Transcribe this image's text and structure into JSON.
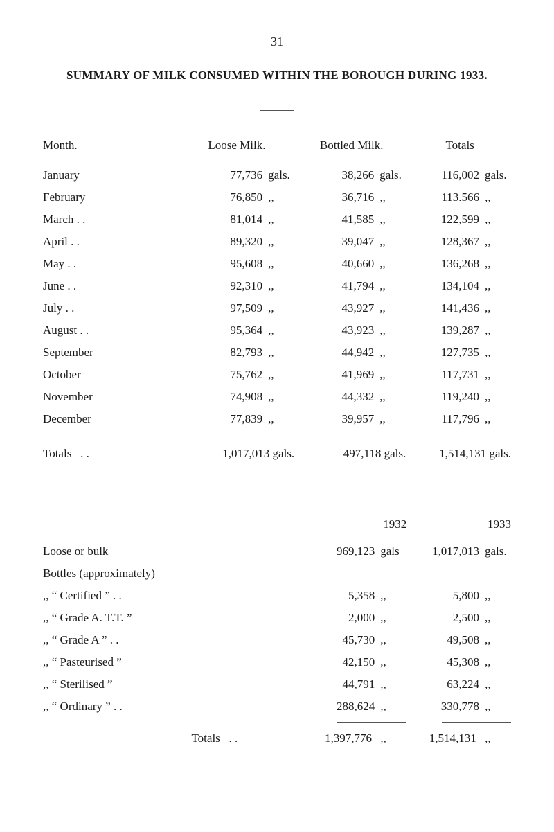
{
  "page_number": "31",
  "title": "SUMMARY OF MILK CONSUMED WITHIN THE BOROUGH DURING 1933.",
  "table1": {
    "headers": {
      "month": "Month.",
      "loose": "Loose Milk.",
      "bottled": "Bottled Milk.",
      "totals": "Totals"
    },
    "unit_gals": "gals.",
    "unit_ditto": ",,",
    "rows": [
      {
        "month": "January",
        "loose": "77,736",
        "bottled": "38,266",
        "total": "116,002"
      },
      {
        "month": "February",
        "loose": "76,850",
        "bottled": "36,716",
        "total": "113.566"
      },
      {
        "month": "March . .",
        "loose": "81,014",
        "bottled": "41,585",
        "total": "122,599"
      },
      {
        "month": "April   . .",
        "loose": "89,320",
        "bottled": "39,047",
        "total": "128,367"
      },
      {
        "month": "May    . .",
        "loose": "95,608",
        "bottled": "40,660",
        "total": "136,268"
      },
      {
        "month": "June   . .",
        "loose": "92,310",
        "bottled": "41,794",
        "total": "134,104"
      },
      {
        "month": "July   . .",
        "loose": "97,509",
        "bottled": "43,927",
        "total": "141,436"
      },
      {
        "month": "August . .",
        "loose": "95,364",
        "bottled": "43,923",
        "total": "139,287"
      },
      {
        "month": "September",
        "loose": "82,793",
        "bottled": "44,942",
        "total": "127,735"
      },
      {
        "month": "October",
        "loose": "75,762",
        "bottled": "41,969",
        "total": "117,731"
      },
      {
        "month": "November",
        "loose": "74,908",
        "bottled": "44,332",
        "total": "119,240"
      },
      {
        "month": "December",
        "loose": "77,839",
        "bottled": "39,957",
        "total": "117,796"
      }
    ],
    "totals_label": "Totals",
    "totals": {
      "loose": "1,017,013 gals.",
      "bottled": "497,118 gals.",
      "total": "1,514,131 gals."
    }
  },
  "table2": {
    "year1": "1932",
    "year2": "1933",
    "unit_gals": "gals",
    "unit_gals_dot": "gals.",
    "unit_ditto": ",,",
    "rows": [
      {
        "label": "Loose or bulk",
        "y1": "969,123",
        "y1u": "gals",
        "y2": "1,017,013",
        "y2u": "gals.",
        "indent": false
      },
      {
        "label": "Bottles (approximately)",
        "y1": "",
        "y1u": "",
        "y2": "",
        "y2u": "",
        "indent": false
      },
      {
        "label": ",,    “ Certified ”  . .",
        "y1": "5,358",
        "y1u": ",,",
        "y2": "5,800",
        "y2u": ",,",
        "indent": true
      },
      {
        "label": ",,    “ Grade A. T.T. ”",
        "y1": "2,000",
        "y1u": ",,",
        "y2": "2,500",
        "y2u": ",,",
        "indent": true
      },
      {
        "label": ",,    “ Grade A ”  . .",
        "y1": "45,730",
        "y1u": ",,",
        "y2": "49,508",
        "y2u": ",,",
        "indent": true
      },
      {
        "label": ",,    “ Pasteurised ”",
        "y1": "42,150",
        "y1u": ",,",
        "y2": "45,308",
        "y2u": ",,",
        "indent": true
      },
      {
        "label": ",,    “ Sterilised ”",
        "y1": "44,791",
        "y1u": ",,",
        "y2": "63,224",
        "y2u": ",,",
        "indent": true
      },
      {
        "label": ",,    “ Ordinary ”  . .",
        "y1": "288,624",
        "y1u": ",,",
        "y2": "330,778",
        "y2u": ",,",
        "indent": true
      }
    ],
    "totals_label": "Totals",
    "totals": {
      "y1": "1,397,776",
      "y1u": ",,",
      "y2": "1,514,131",
      "y2u": ",,"
    }
  }
}
